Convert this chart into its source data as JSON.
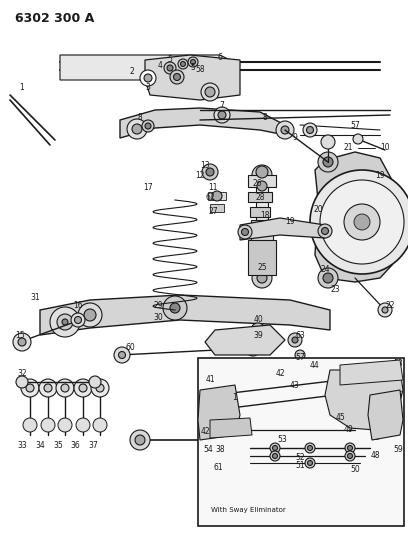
{
  "title": "6302 300 A",
  "bg_color": "#ffffff",
  "dc": "#1a1a1a",
  "fig_width": 4.08,
  "fig_height": 5.33,
  "dpi": 100,
  "inset_label": "With Sway Eliminator"
}
